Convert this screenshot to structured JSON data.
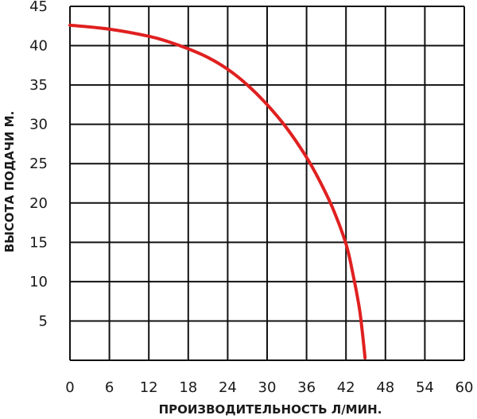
{
  "chart_data": {
    "type": "line",
    "title": "",
    "xlabel": "ПРОИЗВОДИТЕЛЬНОСТЬ Л/МИН.",
    "ylabel": "ВЫСОТА ПОДАЧИ М.",
    "xlim": [
      0,
      60
    ],
    "ylim": [
      0,
      45
    ],
    "x_ticks": [
      0,
      6,
      12,
      18,
      24,
      30,
      36,
      42,
      48,
      54,
      60
    ],
    "y_ticks": [
      5,
      10,
      15,
      20,
      25,
      30,
      35,
      40,
      45
    ],
    "grid": true,
    "legend": "none",
    "line_color": "#e02020",
    "grid_color": "#111111",
    "series": [
      {
        "x": [
          0,
          6,
          12,
          15,
          18,
          21,
          24,
          27,
          30,
          33,
          36,
          38,
          40,
          42,
          43,
          44,
          44.5,
          44.9
        ],
        "y": [
          42.6,
          42.1,
          41.2,
          40.5,
          39.6,
          38.5,
          37.0,
          35.0,
          32.5,
          29.5,
          25.8,
          22.8,
          19.3,
          14.8,
          11.2,
          6.8,
          3.5,
          0.3
        ]
      }
    ]
  }
}
